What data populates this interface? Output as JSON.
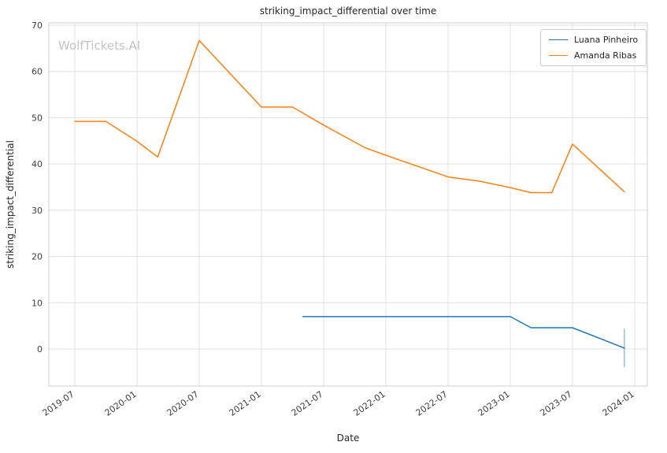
{
  "watermark": "WolfTickets.AI",
  "chart_data": {
    "type": "line",
    "title": "striking_impact_differential over time",
    "xlabel": "Date",
    "ylabel": "striking_impact_differential",
    "grid": true,
    "legend_position": "upper right",
    "x_ticks": [
      "2019-07",
      "2020-01",
      "2020-07",
      "2021-01",
      "2021-07",
      "2022-01",
      "2022-07",
      "2023-01",
      "2023-07",
      "2024-01"
    ],
    "y_ticks": [
      0,
      10,
      20,
      30,
      40,
      50,
      60,
      70
    ],
    "ylim": [
      -8,
      70.5
    ],
    "series": [
      {
        "name": "Luana Pinheiro",
        "color": "#1f77b4",
        "points": [
          [
            "2021-05",
            7.0
          ],
          [
            "2023-01",
            7.0
          ],
          [
            "2023-03",
            4.6
          ],
          [
            "2023-07",
            4.6
          ],
          [
            "2023-12",
            0.2
          ]
        ],
        "error_bar": {
          "x": "2023-12",
          "low": -3.9,
          "high": 4.4
        }
      },
      {
        "name": "Amanda Ribas",
        "color": "#ff7f0e",
        "points": [
          [
            "2019-07",
            49.2
          ],
          [
            "2019-10",
            49.2
          ],
          [
            "2020-01",
            44.9
          ],
          [
            "2020-03",
            41.5
          ],
          [
            "2020-07",
            66.7
          ],
          [
            "2021-01",
            52.3
          ],
          [
            "2021-04",
            52.3
          ],
          [
            "2021-07",
            48.4
          ],
          [
            "2021-11",
            43.5
          ],
          [
            "2022-01",
            41.9
          ],
          [
            "2022-07",
            37.2
          ],
          [
            "2022-10",
            36.3
          ],
          [
            "2023-01",
            34.9
          ],
          [
            "2023-03",
            33.8
          ],
          [
            "2023-05",
            33.8
          ],
          [
            "2023-07",
            44.3
          ],
          [
            "2023-12",
            34.0
          ]
        ]
      }
    ]
  }
}
